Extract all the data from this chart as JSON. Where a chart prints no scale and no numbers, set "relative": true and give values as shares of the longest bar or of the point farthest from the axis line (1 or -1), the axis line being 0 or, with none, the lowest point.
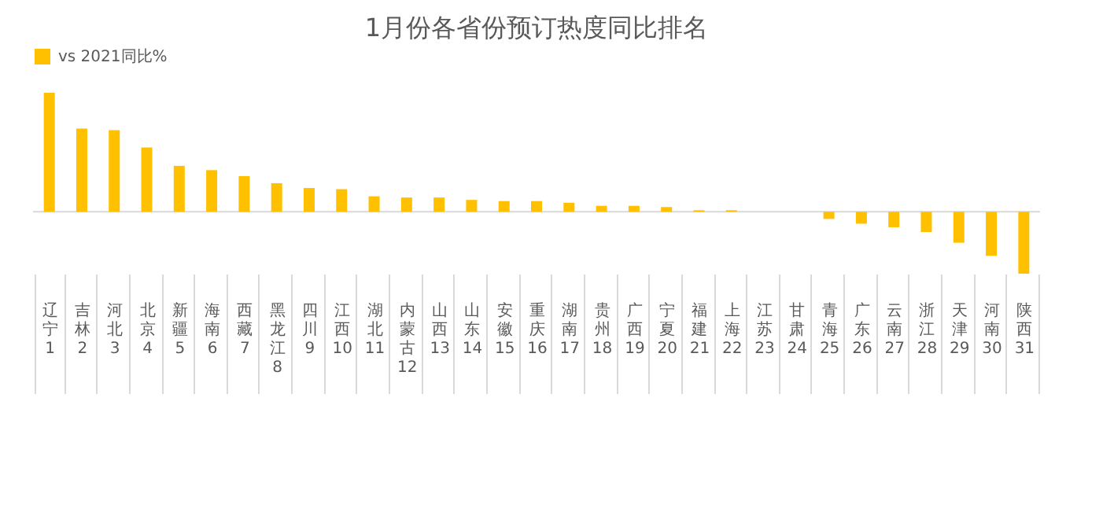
{
  "chart_data": {
    "type": "bar",
    "title": "1月份各省份预订热度同比排名",
    "relative": true,
    "legend": "top",
    "categories": [
      "辽宁",
      "吉林",
      "河北",
      "北京",
      "新疆",
      "海南",
      "西藏",
      "黑龙江",
      "四川",
      "江西",
      "湖北",
      "内蒙古",
      "山西",
      "山东",
      "安徽",
      "重庆",
      "湖南",
      "贵州",
      "广西",
      "宁夏",
      "福建",
      "上海",
      "江苏",
      "甘肃",
      "青海",
      "广东",
      "云南",
      "浙江",
      "天津",
      "河南",
      "陕西"
    ],
    "series": [
      {
        "name": "vs 2021同比%",
        "color": "#ffc000",
        "values": [
          1,
          0.7,
          0.686,
          0.54,
          0.386,
          0.35,
          0.3,
          0.24,
          0.2,
          0.19,
          0.13,
          0.12,
          0.12,
          0.1,
          0.09,
          0.09,
          0.076,
          0.05,
          0.05,
          0.04,
          0.013,
          0.013,
          0,
          0,
          -0.06,
          -0.1,
          -0.13,
          -0.17,
          -0.26,
          -0.37,
          -0.52
        ]
      }
    ],
    "annotations": [
      "1",
      "2",
      "3",
      "4",
      "5",
      "6",
      "7",
      "8",
      "9",
      "10",
      "11",
      "12",
      "13",
      "14",
      "15",
      "16",
      "17",
      "18",
      "19",
      "20",
      "21",
      "22",
      "23",
      "24",
      "25",
      "26",
      "27",
      "28",
      "29",
      "30",
      "31"
    ]
  }
}
